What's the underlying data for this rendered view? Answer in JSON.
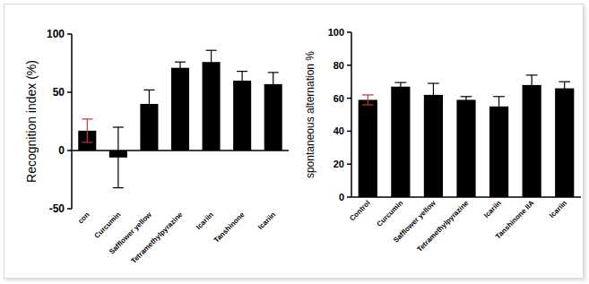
{
  "chart_data": [
    {
      "type": "bar",
      "y_label": "Recognition index (%)",
      "categories": [
        "con",
        "Curcumin",
        "Safflower yellow",
        "Tetramethylpyrazine",
        "Icariin",
        "Tanshinone",
        "Icariin"
      ],
      "values": [
        17,
        -6,
        40,
        71,
        76,
        60,
        57
      ],
      "errors": [
        10,
        26,
        12,
        5,
        10,
        8,
        10
      ],
      "color": "#000000",
      "ylim": [
        -50,
        100
      ],
      "yticks": [
        -50,
        0,
        50,
        100
      ]
    },
    {
      "type": "bar",
      "y_label": "spontaneous alternation %",
      "categories": [
        "Control",
        "Curcumin",
        "Safflower yellow",
        "Tetramethylpyrazine",
        "Icariin",
        "Tanshinone IIA",
        "Icariin"
      ],
      "values": [
        59,
        67,
        62,
        59,
        55,
        68,
        66
      ],
      "errors": [
        3,
        2.5,
        7,
        2,
        6,
        6,
        4
      ],
      "color": "#000000",
      "ylim": [
        0,
        100
      ],
      "yticks": [
        0,
        20,
        40,
        60,
        80,
        100
      ]
    }
  ]
}
